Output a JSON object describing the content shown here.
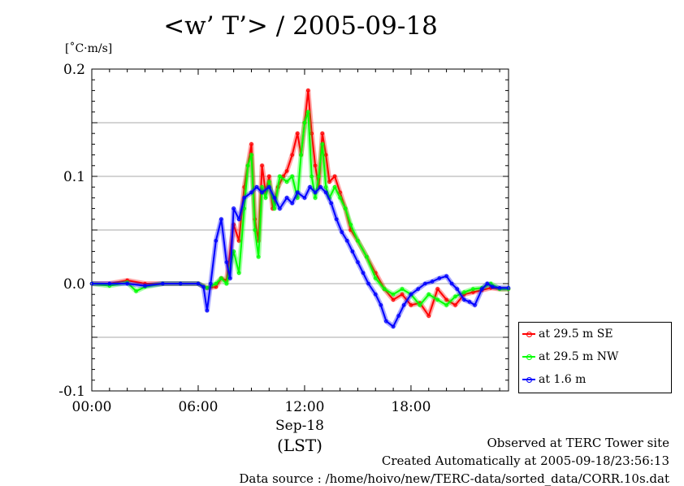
{
  "chart_data": {
    "type": "line",
    "title": "<w’ T’> / 2005-09-18",
    "ylabel": "[˚C·m/s]",
    "xdate_label": "Sep-18",
    "xunit_label": "(LST)",
    "ylim": [
      -0.1,
      0.2
    ],
    "xlim_hours": [
      0,
      23.5
    ],
    "yticks": [
      "0.2",
      "0.1",
      "0.0",
      "-0.1"
    ],
    "ytick_values": [
      0.2,
      0.1,
      0.0,
      -0.1
    ],
    "xticks": [
      "00:00",
      "06:00",
      "12:00",
      "18:00"
    ],
    "xtick_values": [
      0,
      6,
      12,
      18
    ],
    "grid": true,
    "legend_position": "bottom-right outside",
    "series": [
      {
        "name": "at 29.5 m SE",
        "color": "#ff0000",
        "x": [
          0,
          1,
          2,
          3,
          4,
          5,
          6,
          6.5,
          7,
          7.3,
          7.6,
          8,
          8.3,
          8.6,
          8.8,
          9,
          9.2,
          9.4,
          9.6,
          9.8,
          10,
          10.2,
          10.5,
          10.8,
          11,
          11.3,
          11.6,
          11.8,
          12,
          12.2,
          12.4,
          12.6,
          12.8,
          13,
          13.2,
          13.4,
          13.7,
          14,
          14.3,
          14.6,
          15,
          15.5,
          16,
          16.5,
          17,
          17.5,
          18,
          18.5,
          19,
          19.5,
          20,
          20.5,
          21,
          21.5,
          22,
          22.5,
          23,
          23.5
        ],
        "values": [
          0.0,
          0.0,
          0.003,
          0.0,
          0.0,
          0.0,
          0.0,
          -0.004,
          -0.003,
          0.005,
          0.003,
          0.055,
          0.04,
          0.09,
          0.11,
          0.13,
          0.06,
          0.04,
          0.11,
          0.085,
          0.1,
          0.07,
          0.09,
          0.1,
          0.105,
          0.12,
          0.14,
          0.12,
          0.15,
          0.18,
          0.14,
          0.11,
          0.09,
          0.14,
          0.12,
          0.095,
          0.1,
          0.085,
          0.07,
          0.05,
          0.04,
          0.025,
          0.01,
          -0.005,
          -0.015,
          -0.01,
          -0.02,
          -0.018,
          -0.03,
          -0.005,
          -0.015,
          -0.02,
          -0.01,
          -0.008,
          -0.006,
          -0.004,
          -0.005,
          -0.005
        ]
      },
      {
        "name": "at 29.5 m NW",
        "color": "#00ff00",
        "x": [
          0,
          1,
          2,
          2.5,
          3,
          4,
          5,
          6,
          6.5,
          7,
          7.3,
          7.6,
          8,
          8.3,
          8.6,
          8.8,
          9,
          9.2,
          9.4,
          9.6,
          9.8,
          10,
          10.3,
          10.6,
          11,
          11.3,
          11.6,
          11.8,
          12,
          12.2,
          12.4,
          12.6,
          12.8,
          13,
          13.2,
          13.4,
          13.7,
          14,
          14.3,
          14.6,
          15,
          15.5,
          16,
          16.5,
          17,
          17.5,
          18,
          18.5,
          19,
          19.5,
          20,
          20.5,
          21,
          21.5,
          22,
          22.5,
          23,
          23.5
        ],
        "values": [
          0.0,
          -0.002,
          0.001,
          -0.007,
          -0.003,
          0.0,
          0.0,
          0.0,
          -0.004,
          0.0,
          0.005,
          0.0,
          0.03,
          0.01,
          0.07,
          0.11,
          0.12,
          0.05,
          0.025,
          0.09,
          0.08,
          0.095,
          0.07,
          0.1,
          0.095,
          0.1,
          0.08,
          0.12,
          0.15,
          0.16,
          0.1,
          0.08,
          0.1,
          0.13,
          0.09,
          0.08,
          0.09,
          0.08,
          0.07,
          0.055,
          0.04,
          0.025,
          0.005,
          -0.005,
          -0.01,
          -0.005,
          -0.01,
          -0.02,
          -0.01,
          -0.015,
          -0.02,
          -0.012,
          -0.008,
          -0.005,
          -0.004,
          0.0,
          -0.005,
          -0.005
        ]
      },
      {
        "name": "at 1.6 m",
        "color": "#0000ff",
        "x": [
          0,
          1,
          2,
          3,
          4,
          5,
          6,
          6.3,
          6.5,
          6.7,
          7,
          7.3,
          7.6,
          7.8,
          8,
          8.3,
          8.6,
          9,
          9.3,
          9.6,
          10,
          10.3,
          10.6,
          11,
          11.3,
          11.6,
          12,
          12.3,
          12.6,
          12.9,
          13.2,
          13.5,
          13.8,
          14.1,
          14.4,
          14.7,
          15,
          15.3,
          15.6,
          16,
          16.3,
          16.6,
          17,
          17.3,
          17.6,
          18,
          18.4,
          18.8,
          19.2,
          19.6,
          20,
          20.3,
          20.6,
          21,
          21.3,
          21.6,
          22,
          22.3,
          22.6,
          23,
          23.5
        ],
        "values": [
          0.0,
          0.0,
          0.0,
          -0.002,
          0.0,
          0.0,
          0.0,
          -0.003,
          -0.025,
          0.0,
          0.04,
          0.06,
          0.02,
          0.005,
          0.07,
          0.06,
          0.08,
          0.085,
          0.09,
          0.085,
          0.09,
          0.08,
          0.07,
          0.08,
          0.075,
          0.085,
          0.08,
          0.09,
          0.085,
          0.09,
          0.085,
          0.075,
          0.06,
          0.048,
          0.04,
          0.03,
          0.02,
          0.01,
          0.0,
          -0.01,
          -0.02,
          -0.035,
          -0.04,
          -0.03,
          -0.02,
          -0.01,
          -0.005,
          0.0,
          0.002,
          0.005,
          0.007,
          0.0,
          -0.005,
          -0.015,
          -0.017,
          -0.02,
          -0.005,
          0.0,
          -0.003,
          -0.004,
          -0.004
        ]
      }
    ]
  },
  "footer": {
    "observed": "Observed at TERC Tower site",
    "created": "Created Automatically at 2005-09-18/23:56:13",
    "source": "Data source : /home/hoivo/new/TERC-data/sorted_data/CORR.10s.dat"
  }
}
